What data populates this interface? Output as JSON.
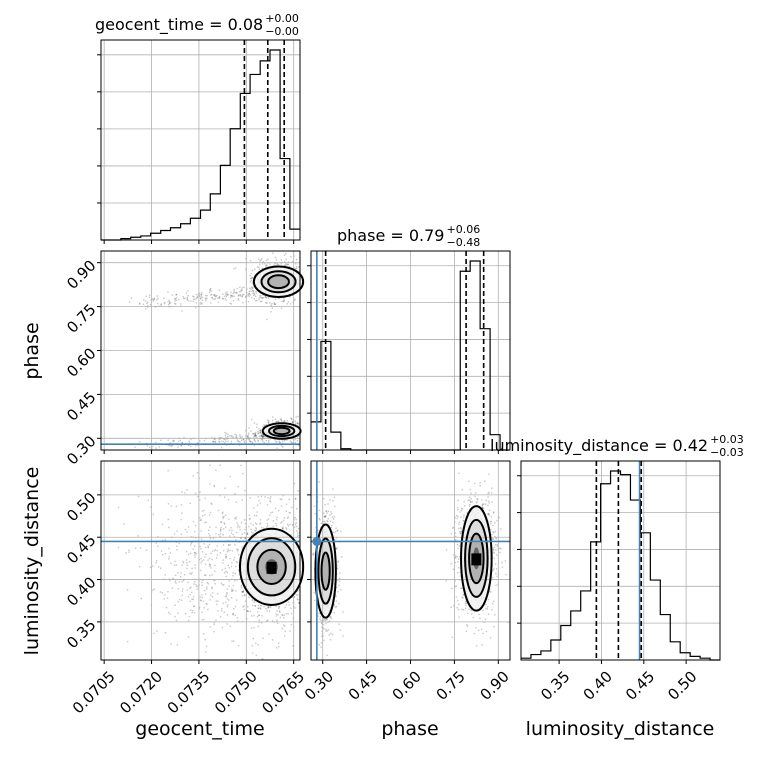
{
  "chart_data": {
    "type": "corner",
    "parameters": [
      "geocent_time",
      "phase",
      "luminosity_distance"
    ],
    "titles": [
      {
        "label": "geocent_time = 0.08",
        "sup": "+0.00",
        "sub": "−0.00"
      },
      {
        "label": "phase = 0.79",
        "sup": "+0.06",
        "sub": "−0.48"
      },
      {
        "label": "luminosity_distance = 0.42",
        "sup": "+0.03",
        "sub": "−0.03"
      }
    ],
    "ranges": {
      "geocent_time": [
        0.0704,
        0.0767
      ],
      "phase": [
        0.26,
        0.94
      ],
      "luminosity_distance": [
        0.305,
        0.54
      ]
    },
    "ticks": {
      "geocent_time": [
        "0.0705",
        "0.0720",
        "0.0735",
        "0.0750",
        "0.0765"
      ],
      "phase": [
        "0.30",
        "0.45",
        "0.60",
        "0.75",
        "0.90"
      ],
      "luminosity_distance": [
        "0.35",
        "0.40",
        "0.45",
        "0.50"
      ]
    },
    "truths": {
      "phase": 0.28,
      "luminosity_distance": 0.445
    },
    "quantiles": {
      "geocent_time": [
        0.07494,
        0.07568,
        0.0762
      ],
      "phase": [
        0.31,
        0.79,
        0.85
      ],
      "luminosity_distance": [
        0.394,
        0.42,
        0.447
      ]
    },
    "histograms": {
      "geocent_time": {
        "edges": [
          0.0704,
          0.07071,
          0.07103,
          0.07134,
          0.07166,
          0.07197,
          0.07229,
          0.0726,
          0.07292,
          0.07323,
          0.07355,
          0.07386,
          0.07418,
          0.07449,
          0.07481,
          0.07512,
          0.07544,
          0.07575,
          0.07607,
          0.07638,
          0.0767
        ],
        "counts": [
          0,
          0,
          1,
          2,
          3,
          5,
          7,
          9,
          12,
          16,
          22,
          34,
          55,
          82,
          108,
          122,
          132,
          140,
          60,
          8
        ]
      },
      "phase": {
        "edges": [
          0.26,
          0.294,
          0.328,
          0.362,
          0.396,
          0.43,
          0.464,
          0.498,
          0.532,
          0.566,
          0.6,
          0.634,
          0.668,
          0.702,
          0.736,
          0.77,
          0.804,
          0.838,
          0.872,
          0.906,
          0.94
        ],
        "counts": [
          22,
          85,
          14,
          1,
          0,
          0,
          0,
          0,
          0,
          0,
          0,
          0,
          0,
          0,
          0,
          140,
          148,
          95,
          12,
          0
        ]
      },
      "luminosity_distance": {
        "edges": [
          0.305,
          0.31675,
          0.3285,
          0.34025,
          0.352,
          0.36375,
          0.3755,
          0.38725,
          0.399,
          0.41075,
          0.4225,
          0.43425,
          0.446,
          0.45775,
          0.4695,
          0.48125,
          0.493,
          0.50475,
          0.5165,
          0.52825,
          0.54
        ],
        "counts": [
          1,
          3,
          5,
          11,
          19,
          27,
          38,
          65,
          97,
          104,
          102,
          88,
          70,
          44,
          25,
          10,
          4,
          2,
          1,
          0
        ]
      }
    },
    "samples_color": "#000000",
    "truth_color": "#4682b4",
    "grid": true
  }
}
